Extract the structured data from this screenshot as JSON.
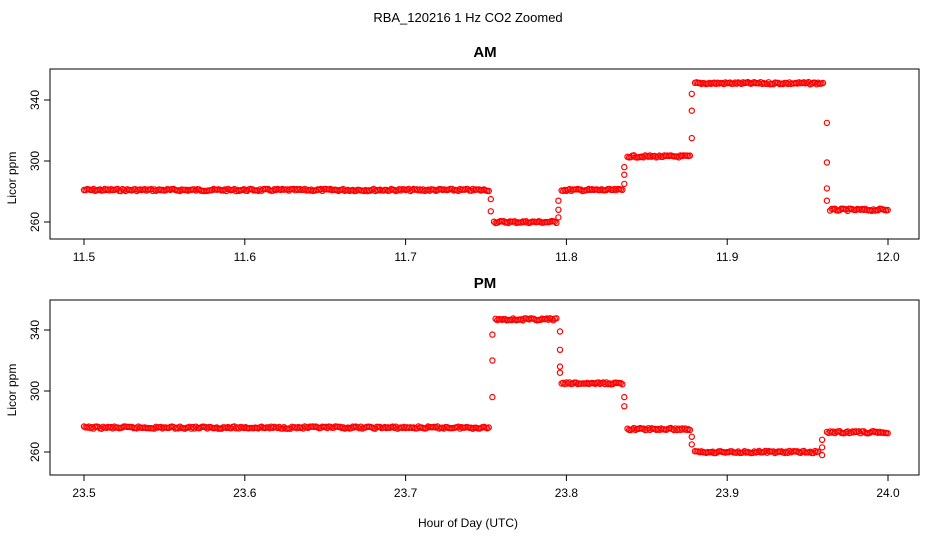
{
  "figure": {
    "title": "RBA_120216  1 Hz CO2 Zoomed",
    "xlabel": "Hour of Day (UTC)"
  },
  "colors": {
    "points": "#ff0000",
    "axes": "#000000",
    "background": "#ffffff"
  },
  "chart_data": [
    {
      "type": "scatter",
      "title": "AM",
      "xlabel": "",
      "ylabel": "Licor ppm",
      "xlim": [
        11.5,
        12.0
      ],
      "ylim": [
        256,
        357
      ],
      "xticks": [
        11.5,
        11.6,
        11.7,
        11.8,
        11.9,
        12.0
      ],
      "xtick_labels": [
        "11.5",
        "11.6",
        "11.7",
        "11.8",
        "11.9",
        "12.0"
      ],
      "yticks": [
        260,
        300,
        340
      ],
      "ytick_labels": [
        "260",
        "300",
        "340"
      ],
      "marker": "open-circle",
      "grid": false,
      "segments": [
        {
          "x_start": 11.5,
          "x_end": 11.752,
          "y": 281
        },
        {
          "x_start": 11.755,
          "x_end": 11.794,
          "y": 260
        },
        {
          "x_start": 11.797,
          "x_end": 11.835,
          "y": 281
        },
        {
          "x_start": 11.838,
          "x_end": 11.877,
          "y": 303
        },
        {
          "x_start": 11.88,
          "x_end": 11.96,
          "y": 351
        },
        {
          "x_start": 11.964,
          "x_end": 12.0,
          "y": 268
        }
      ],
      "transitions": [
        {
          "x": 11.753,
          "y": [
            275,
            267
          ]
        },
        {
          "x": 11.795,
          "y": [
            263,
            268,
            274
          ]
        },
        {
          "x": 11.836,
          "y": [
            285,
            291,
            296
          ]
        },
        {
          "x": 11.878,
          "y": [
            315,
            333,
            344
          ]
        },
        {
          "x": 11.962,
          "y": [
            325,
            299,
            282,
            274
          ]
        }
      ]
    },
    {
      "type": "scatter",
      "title": "PM",
      "xlabel": "",
      "ylabel": "Licor ppm",
      "xlim": [
        23.5,
        24.0
      ],
      "ylim": [
        252,
        360
      ],
      "xticks": [
        23.5,
        23.6,
        23.7,
        23.8,
        23.9,
        24.0
      ],
      "xtick_labels": [
        "23.5",
        "23.6",
        "23.7",
        "23.8",
        "23.9",
        "24.0"
      ],
      "yticks": [
        260,
        300,
        340
      ],
      "ytick_labels": [
        "260",
        "300",
        "340"
      ],
      "marker": "open-circle",
      "grid": false,
      "segments": [
        {
          "x_start": 23.5,
          "x_end": 23.752,
          "y": 276
        },
        {
          "x_start": 23.756,
          "x_end": 23.794,
          "y": 347
        },
        {
          "x_start": 23.797,
          "x_end": 23.835,
          "y": 305
        },
        {
          "x_start": 23.838,
          "x_end": 23.877,
          "y": 275
        },
        {
          "x_start": 23.88,
          "x_end": 23.957,
          "y": 260
        },
        {
          "x_start": 23.962,
          "x_end": 24.0,
          "y": 273
        }
      ],
      "transitions": [
        {
          "x": 23.754,
          "y": [
            296,
            320,
            337
          ]
        },
        {
          "x": 23.796,
          "y": [
            339,
            327,
            316,
            312
          ]
        },
        {
          "x": 23.836,
          "y": [
            296,
            290
          ]
        },
        {
          "x": 23.878,
          "y": [
            270,
            265
          ]
        },
        {
          "x": 23.959,
          "y": [
            258,
            263,
            268
          ]
        }
      ]
    }
  ]
}
